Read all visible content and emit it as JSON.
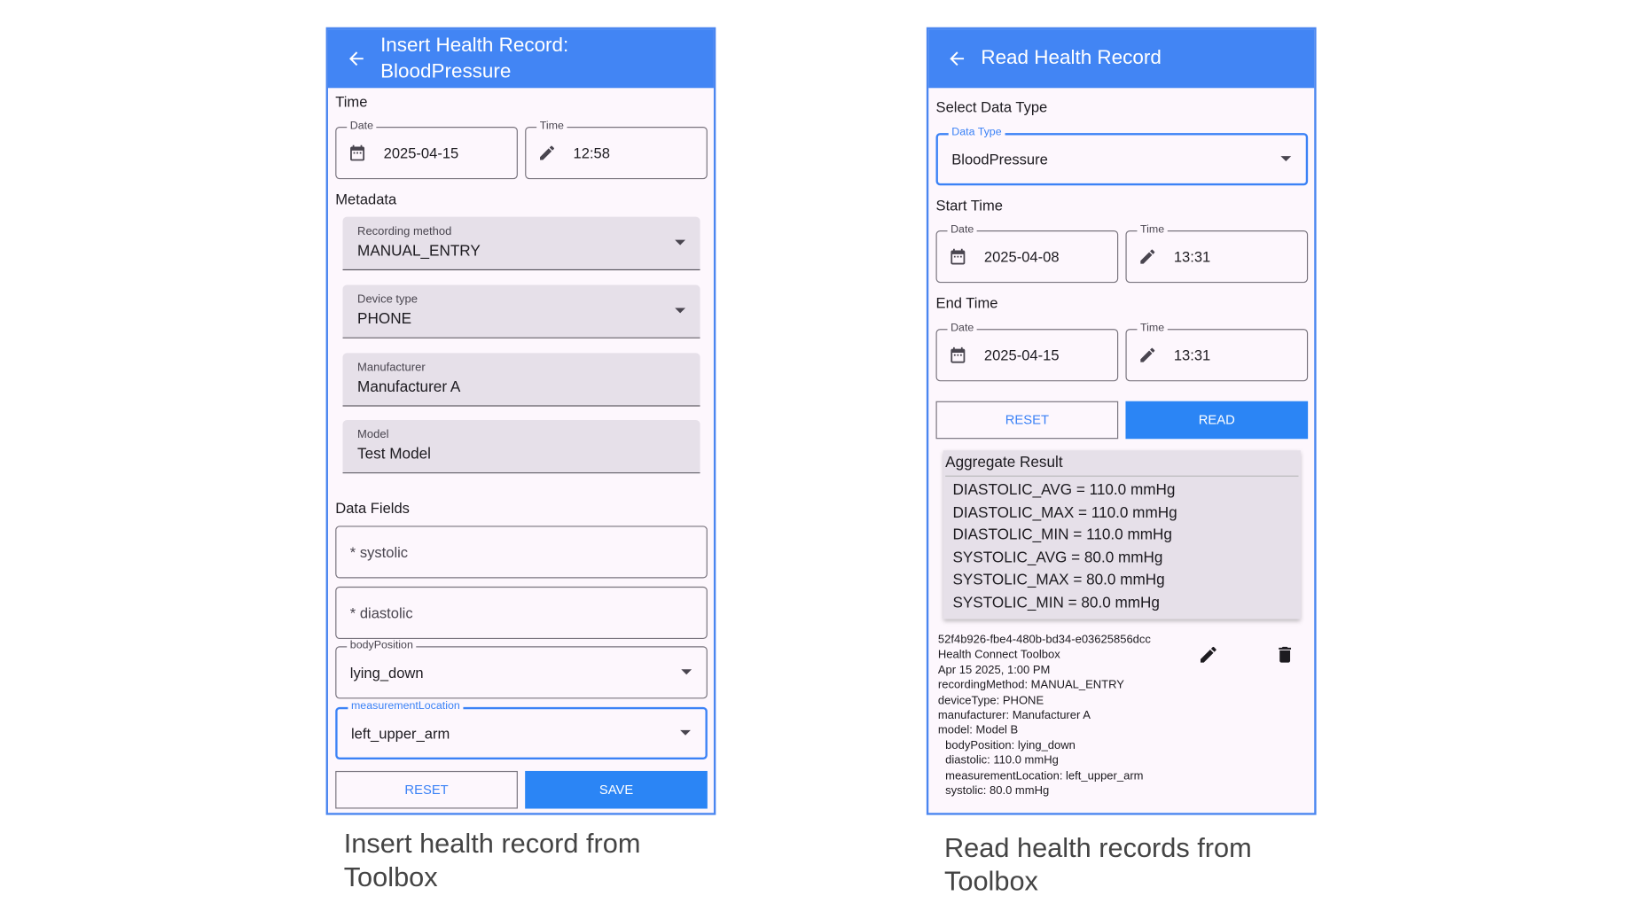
{
  "insert": {
    "title_line1": "Insert Health Record:",
    "title_line2": "BloodPressure",
    "time_section": "Time",
    "date_label": "Date",
    "date_value": "2025-04-15",
    "time_label": "Time",
    "time_value": "12:58",
    "metadata_section": "Metadata",
    "recording_method_label": "Recording method",
    "recording_method_value": "MANUAL_ENTRY",
    "device_type_label": "Device type",
    "device_type_value": "PHONE",
    "manufacturer_label": "Manufacturer",
    "manufacturer_value": "Manufacturer A",
    "model_label": "Model",
    "model_value": "Test Model",
    "data_fields_section": "Data Fields",
    "systolic_placeholder": "* systolic",
    "diastolic_placeholder": "* diastolic",
    "body_position_label": "bodyPosition",
    "body_position_value": "lying_down",
    "measurement_location_label": "measurementLocation",
    "measurement_location_value": "left_upper_arm",
    "reset_label": "RESET",
    "save_label": "SAVE",
    "caption": "Insert health record from Toolbox"
  },
  "read": {
    "title": "Read Health Record",
    "select_section": "Select Data Type",
    "data_type_label": "Data Type",
    "data_type_value": "BloodPressure",
    "start_section": "Start Time",
    "start_date_label": "Date",
    "start_date_value": "2025-04-08",
    "start_time_label": "Time",
    "start_time_value": "13:31",
    "end_section": "End Time",
    "end_date_label": "Date",
    "end_date_value": "2025-04-15",
    "end_time_label": "Time",
    "end_time_value": "13:31",
    "reset_label": "RESET",
    "read_label": "READ",
    "aggregate_title": "Aggregate Result",
    "aggregate_lines": [
      "DIASTOLIC_AVG = 110.0 mmHg",
      "DIASTOLIC_MAX = 110.0 mmHg",
      "DIASTOLIC_MIN = 110.0 mmHg",
      "SYSTOLIC_AVG = 80.0 mmHg",
      "SYSTOLIC_MAX = 80.0 mmHg",
      "SYSTOLIC_MIN = 80.0 mmHg"
    ],
    "record": {
      "lines": [
        "52f4b926-fbe4-480b-bd34-e03625856dcc",
        "Health Connect Toolbox",
        "Apr 15 2025, 1:00 PM",
        "recordingMethod: MANUAL_ENTRY",
        "deviceType: PHONE",
        "manufacturer: Manufacturer A",
        "model: Model B"
      ],
      "fields": [
        "bodyPosition: lying_down",
        "diastolic: 110.0 mmHg",
        "measurementLocation: left_upper_arm",
        "systolic: 80.0 mmHg"
      ]
    },
    "caption": "Read health records from Toolbox"
  },
  "colors": {
    "header": "#4285f4",
    "primary_button": "#2b85f5",
    "panel_bg": "#fdf7fd",
    "filled_field": "#e6e0e9"
  }
}
